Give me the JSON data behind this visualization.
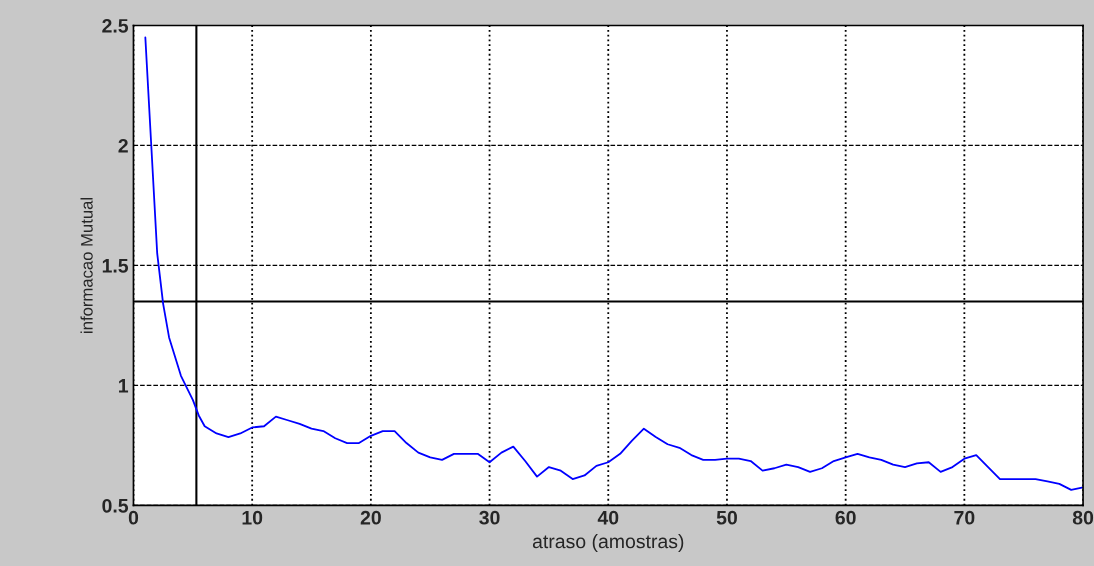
{
  "chart_data": {
    "type": "line",
    "xlabel": "atraso (amostras)",
    "ylabel": "informacao Mutual",
    "x": [
      1,
      1.5,
      2,
      2.5,
      3,
      4,
      5,
      5.5,
      6,
      7,
      8,
      9,
      10,
      11,
      12,
      13,
      14,
      15,
      16,
      17,
      18,
      19,
      20,
      21,
      22,
      23,
      24,
      25,
      26,
      27,
      28,
      29,
      30,
      31,
      32,
      33,
      34,
      35,
      36,
      37,
      38,
      39,
      40,
      41,
      42,
      43,
      44,
      45,
      46,
      47,
      48,
      49,
      50,
      51,
      52,
      53,
      54,
      55,
      56,
      57,
      58,
      59,
      60,
      61,
      62,
      63,
      64,
      65,
      66,
      67,
      68,
      69,
      70,
      71,
      72,
      73,
      74,
      75,
      76,
      77,
      78,
      79,
      80
    ],
    "series": [
      {
        "color": "#0000ff",
        "values": [
          2.45,
          2.0,
          1.55,
          1.34,
          1.2,
          1.04,
          0.94,
          0.875,
          0.83,
          0.8,
          0.785,
          0.8,
          0.825,
          0.83,
          0.87,
          0.855,
          0.84,
          0.82,
          0.81,
          0.78,
          0.76,
          0.76,
          0.79,
          0.81,
          0.81,
          0.76,
          0.72,
          0.7,
          0.69,
          0.715,
          0.715,
          0.715,
          0.68,
          0.72,
          0.745,
          0.685,
          0.62,
          0.66,
          0.645,
          0.61,
          0.625,
          0.665,
          0.68,
          0.715,
          0.77,
          0.82,
          0.785,
          0.755,
          0.74,
          0.71,
          0.69,
          0.69,
          0.695,
          0.695,
          0.685,
          0.645,
          0.655,
          0.67,
          0.66,
          0.64,
          0.655,
          0.685,
          0.7,
          0.715,
          0.7,
          0.69,
          0.67,
          0.66,
          0.675,
          0.68,
          0.64,
          0.66,
          0.695,
          0.71,
          0.66,
          0.61,
          0.61,
          0.61,
          0.61,
          0.6,
          0.59,
          0.565,
          0.575
        ]
      }
    ],
    "xlim": [
      0,
      80
    ],
    "xticks": [
      0,
      10,
      20,
      30,
      40,
      50,
      60,
      70,
      80
    ],
    "ylim": [
      0.5,
      2.5
    ],
    "yticks": [
      0.5,
      1,
      1.5,
      2,
      2.5
    ],
    "grid": true,
    "line_style": "solid",
    "marker": "none",
    "ref_lines": [
      {
        "axis": "x",
        "value": 5.3,
        "color": "#000000"
      },
      {
        "axis": "y",
        "value": 1.35,
        "color": "#000000"
      }
    ]
  }
}
